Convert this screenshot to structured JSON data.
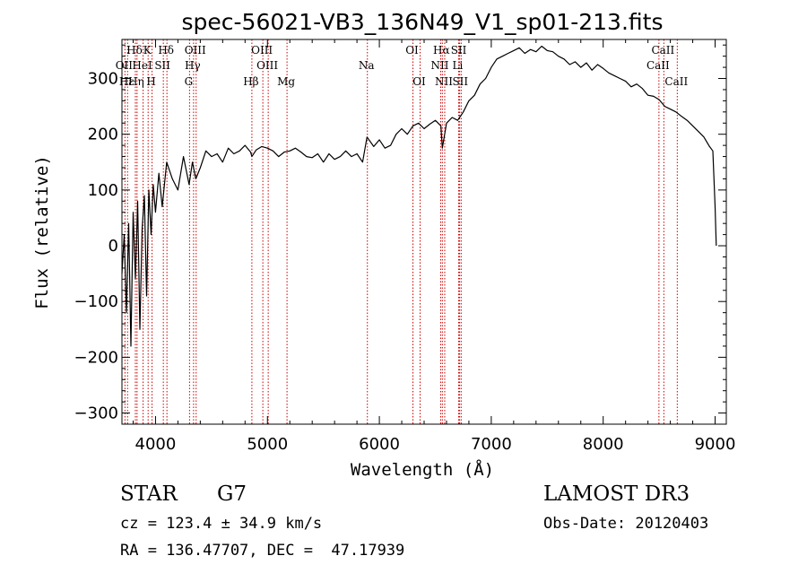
{
  "chart_data": {
    "type": "line",
    "title": "spec-56021-VB3_136N49_V1_sp01-213.fits",
    "xlabel": "Wavelength (Å)",
    "ylabel": "Flux (relative)",
    "xlim": [
      3700,
      9100
    ],
    "ylim": [
      -320,
      370
    ],
    "xticks": [
      4000,
      5000,
      6000,
      7000,
      8000,
      9000
    ],
    "yticks": [
      -300,
      -200,
      -100,
      0,
      100,
      200,
      300
    ],
    "x_minor_step": 200,
    "y_minor_step": 20,
    "series": [
      {
        "name": "flux",
        "x": [
          3700,
          3720,
          3740,
          3760,
          3780,
          3800,
          3820,
          3840,
          3860,
          3880,
          3900,
          3920,
          3940,
          3960,
          3980,
          4000,
          4030,
          4060,
          4100,
          4150,
          4200,
          4250,
          4300,
          4330,
          4360,
          4400,
          4450,
          4500,
          4550,
          4600,
          4650,
          4700,
          4750,
          4800,
          4850,
          4861,
          4900,
          4950,
          5000,
          5050,
          5100,
          5150,
          5200,
          5250,
          5300,
          5350,
          5400,
          5450,
          5500,
          5550,
          5600,
          5650,
          5700,
          5750,
          5800,
          5850,
          5890,
          5950,
          6000,
          6050,
          6100,
          6150,
          6200,
          6250,
          6300,
          6350,
          6400,
          6450,
          6500,
          6550,
          6563,
          6600,
          6650,
          6700,
          6750,
          6800,
          6850,
          6900,
          6950,
          7000,
          7050,
          7100,
          7150,
          7200,
          7250,
          7300,
          7350,
          7400,
          7450,
          7500,
          7550,
          7600,
          7650,
          7700,
          7750,
          7800,
          7850,
          7900,
          7950,
          8000,
          8050,
          8100,
          8150,
          8200,
          8250,
          8300,
          8350,
          8400,
          8450,
          8500,
          8550,
          8600,
          8650,
          8700,
          8750,
          8800,
          8850,
          8900,
          8950,
          8980,
          9000,
          9010
        ],
        "values": [
          -50,
          20,
          -120,
          40,
          -180,
          60,
          -60,
          80,
          -150,
          30,
          90,
          -90,
          100,
          20,
          110,
          60,
          130,
          70,
          150,
          120,
          100,
          160,
          110,
          150,
          120,
          140,
          170,
          160,
          165,
          150,
          175,
          165,
          170,
          180,
          168,
          160,
          172,
          178,
          175,
          170,
          160,
          168,
          170,
          175,
          168,
          160,
          158,
          165,
          150,
          165,
          155,
          160,
          170,
          160,
          165,
          150,
          195,
          178,
          190,
          175,
          180,
          200,
          210,
          200,
          215,
          220,
          210,
          218,
          225,
          215,
          175,
          220,
          230,
          225,
          240,
          260,
          270,
          290,
          300,
          320,
          335,
          340,
          345,
          350,
          355,
          345,
          352,
          348,
          358,
          350,
          348,
          340,
          335,
          325,
          330,
          320,
          328,
          315,
          325,
          318,
          310,
          305,
          300,
          295,
          285,
          290,
          282,
          270,
          268,
          262,
          250,
          245,
          240,
          232,
          225,
          215,
          205,
          195,
          178,
          170,
          70,
          0
        ]
      }
    ],
    "lines": [
      {
        "name": "Hδ",
        "x": 3820,
        "row": 0
      },
      {
        "name": "OII",
        "x": 3727,
        "row": 1
      },
      {
        "name": "Hε",
        "x": 3750,
        "row": 2
      },
      {
        "name": "K",
        "x": 3934,
        "row": 0
      },
      {
        "name": "HeI",
        "x": 3889,
        "row": 1
      },
      {
        "name": "Hη",
        "x": 3835,
        "row": 2
      },
      {
        "name": "SII",
        "x": 4070,
        "row": 1
      },
      {
        "name": "H",
        "x": 3969,
        "row": 2
      },
      {
        "name": "Hδ",
        "x": 4102,
        "row": 0
      },
      {
        "name": "OIII",
        "x": 4363,
        "row": 0
      },
      {
        "name": "Hγ",
        "x": 4340,
        "row": 1
      },
      {
        "name": "G",
        "x": 4304,
        "row": 2
      },
      {
        "name": "OIII",
        "x": 4959,
        "row": 0
      },
      {
        "name": "OIII",
        "x": 5007,
        "row": 1
      },
      {
        "name": "Hβ",
        "x": 4861,
        "row": 2
      },
      {
        "name": "Mg",
        "x": 5175,
        "row": 2
      },
      {
        "name": "Na",
        "x": 5893,
        "row": 1
      },
      {
        "name": "OI",
        "x": 6300,
        "row": 0
      },
      {
        "name": "OI",
        "x": 6364,
        "row": 2
      },
      {
        "name": "Hα",
        "x": 6563,
        "row": 0
      },
      {
        "name": "NII",
        "x": 6548,
        "row": 1
      },
      {
        "name": "NII",
        "x": 6584,
        "row": 2
      },
      {
        "name": "SII",
        "x": 6717,
        "row": 0
      },
      {
        "name": "Li",
        "x": 6708,
        "row": 1
      },
      {
        "name": "SII",
        "x": 6731,
        "row": 2
      },
      {
        "name": "CaII",
        "x": 8542,
        "row": 0
      },
      {
        "name": "CaII",
        "x": 8498,
        "row": 1
      },
      {
        "name": "CaII",
        "x": 8662,
        "row": 2
      }
    ]
  },
  "info": {
    "object_class": "STAR",
    "subclass": "G7",
    "survey": "LAMOST DR3",
    "redshift": "cz = 123.4 ± 34.9 km/s",
    "obs_date": "Obs-Date: 20120403",
    "coords": "RA = 136.47707, DEC =  47.17939"
  },
  "colors": {
    "line_marker": "#cc0000",
    "spectrum": "#000000",
    "axes": "#000000"
  }
}
